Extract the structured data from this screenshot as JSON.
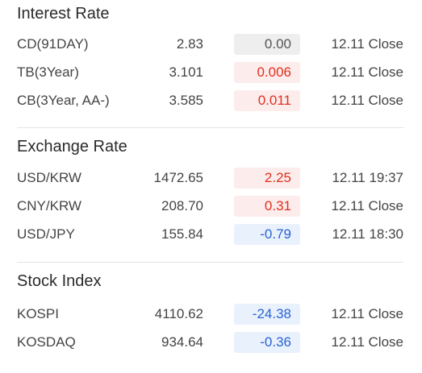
{
  "sections": [
    {
      "title": "Interest Rate",
      "rows": [
        {
          "name": "CD(91DAY)",
          "value": "2.83",
          "change": "0.00",
          "time": "12.11 Close"
        },
        {
          "name": "TB(3Year)",
          "value": "3.101",
          "change": "0.006",
          "time": "12.11 Close"
        },
        {
          "name": "CB(3Year, AA-)",
          "value": "3.585",
          "change": "0.011",
          "time": "12.11 Close"
        }
      ]
    },
    {
      "title": "Exchange Rate",
      "rows": [
        {
          "name": "USD/KRW",
          "value": "1472.65",
          "change": "2.25",
          "time": "12.11 19:37"
        },
        {
          "name": "CNY/KRW",
          "value": "208.70",
          "change": "0.31",
          "time": "12.11 Close"
        },
        {
          "name": "USD/JPY",
          "value": "155.84",
          "change": "-0.79",
          "time": "12.11 18:30"
        }
      ]
    },
    {
      "title": "Stock Index",
      "rows": [
        {
          "name": "KOSPI",
          "value": "4110.62",
          "change": "-24.38",
          "time": "12.11 Close"
        },
        {
          "name": "KOSDAQ",
          "value": "934.64",
          "change": "-0.36",
          "time": "12.11 Close"
        }
      ]
    }
  ],
  "colors": {
    "up_text": "#e0301e",
    "up_bg": "#fdecec",
    "down_text": "#2a63d6",
    "down_bg": "#e9f1fd",
    "flat_text": "#555555",
    "flat_bg": "#eeeeee"
  }
}
